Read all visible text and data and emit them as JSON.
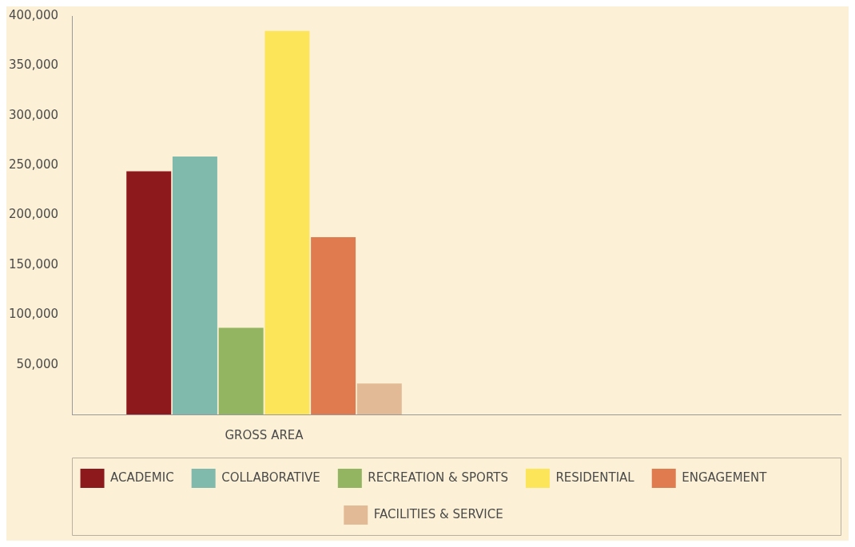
{
  "chart_data": {
    "type": "bar",
    "categories": [
      "GROSS AREA",
      null
    ],
    "series": [
      {
        "name": "ACADEMIC",
        "color": "#8e191c",
        "values": [
          244000,
          null
        ]
      },
      {
        "name": "COLLABORATIVE",
        "color": "#7fbaad",
        "values": [
          259000,
          null
        ]
      },
      {
        "name": "RECREATION & SPORTS",
        "color": "#93b561",
        "values": [
          87000,
          null
        ]
      },
      {
        "name": "RESIDENTIAL",
        "color": "#fde55a",
        "values": [
          385000,
          null
        ]
      },
      {
        "name": "ENGAGEMENT",
        "color": "#e07b50",
        "values": [
          178000,
          null
        ]
      },
      {
        "name": "FACILITIES & SERVICE",
        "color": "#e2bb96",
        "values": [
          31000,
          null
        ]
      }
    ],
    "ylim": [
      0,
      400000
    ],
    "yticks": [
      {
        "value": 0,
        "label": null
      },
      {
        "value": 50000,
        "label": "50,000"
      },
      {
        "value": 100000,
        "label": "100,000"
      },
      {
        "value": 150000,
        "label": "150,000"
      },
      {
        "value": 200000,
        "label": "200,000"
      },
      {
        "value": 250000,
        "label": "250,000"
      },
      {
        "value": 300000,
        "label": "300,000"
      },
      {
        "value": 350000,
        "label": "350,000"
      },
      {
        "value": 400000,
        "label": "400,000"
      }
    ],
    "grid": false,
    "legend": "bottom"
  }
}
